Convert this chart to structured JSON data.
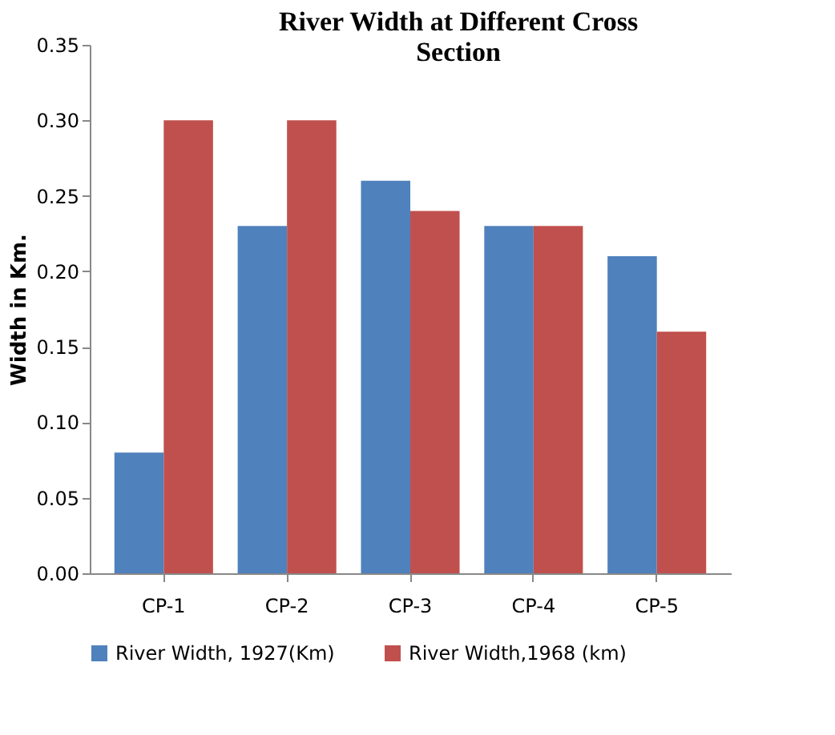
{
  "chart_data": {
    "type": "bar",
    "title": "River Width at Different Cross Section",
    "ylabel": "Width in Km.",
    "categories": [
      "CP-1",
      "CP-2",
      "CP-3",
      "CP-4",
      "CP-5"
    ],
    "series": [
      {
        "name": "River Width, 1927(Km)",
        "color": "#4f81bd",
        "values": [
          0.08,
          0.23,
          0.26,
          0.23,
          0.21
        ]
      },
      {
        "name": "River Width,1968 (km)",
        "color": "#c0504d",
        "values": [
          0.3,
          0.3,
          0.24,
          0.23,
          0.16
        ]
      }
    ],
    "ylim": [
      0,
      0.35
    ],
    "yticks": [
      {
        "value": 0,
        "label": "0.00"
      },
      {
        "value": 0.05,
        "label": "0.05"
      },
      {
        "value": 0.1,
        "label": "0.10"
      },
      {
        "value": 0.15,
        "label": "0.15"
      },
      {
        "value": 0.2,
        "label": "0.20"
      },
      {
        "value": 0.25,
        "label": "0.25"
      },
      {
        "value": 0.3,
        "label": "0.30"
      },
      {
        "value": 0.35,
        "label": "0.35"
      }
    ],
    "grid": false,
    "legend": "bottom"
  }
}
